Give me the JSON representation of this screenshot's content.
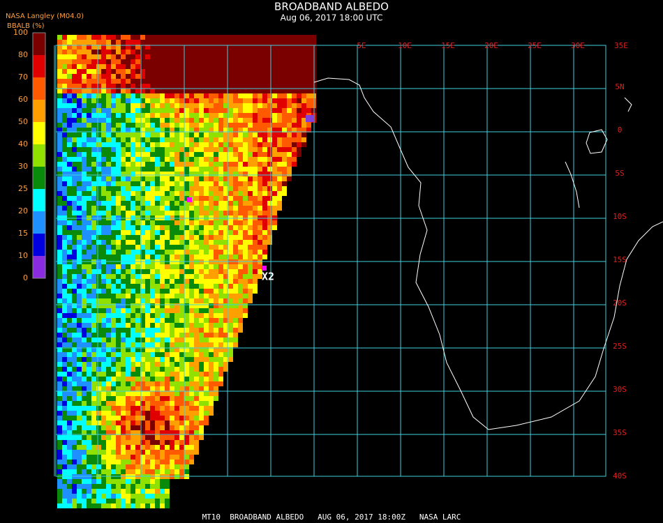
{
  "header": {
    "title": "BROADBAND ALBEDO",
    "subtitle": "Aug 06, 2017 18:00 UTC",
    "source": "NASA Langley (M04.0)"
  },
  "colorbar": {
    "label": "BBALB (%)",
    "ticks": [
      100,
      80,
      70,
      60,
      50,
      40,
      30,
      25,
      20,
      15,
      10,
      0
    ],
    "colors": [
      "#7a0000",
      "#e00000",
      "#ff5a00",
      "#ffa000",
      "#ffff00",
      "#90e000",
      "#0a8a0a",
      "#00ffff",
      "#1e90ff",
      "#0000e0",
      "#8a2be2"
    ]
  },
  "longitude_labels": [
    "5E",
    "10E",
    "15E",
    "20E",
    "25E",
    "30E",
    "35E"
  ],
  "latitude_labels": [
    "5N",
    "0",
    "5S",
    "10S",
    "15S",
    "20S",
    "25S",
    "30S",
    "35S",
    "40S"
  ],
  "marker": "X2",
  "footer": "MT10  BROADBAND ALBEDO   AUG 06, 2017 18:00Z   NASA LARC"
}
